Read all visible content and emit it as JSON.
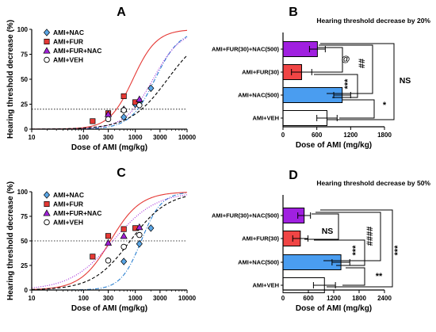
{
  "colors": {
    "nac": "#2a7fd0",
    "fur": "#e53935",
    "fur_nac": "#a020d8",
    "veh": "#000000",
    "bar_nac": "#4a9df0",
    "bar_fur": "#f04545",
    "bar_fur_nac": "#a020e0",
    "bar_veh": "#ffffff",
    "point_nac": "#5aa6e6"
  },
  "chart_data": [
    {
      "type": "scatter",
      "panel": "A",
      "xlabel": "Dose of AMI (mg/kg)",
      "ylabel": "Hearing threshold decrease (%)",
      "xscale": "log",
      "xlim": [
        10,
        10000
      ],
      "ylim": [
        0,
        100
      ],
      "xticks": [
        10,
        100,
        300,
        1000,
        3000,
        10000
      ],
      "xtick_labels": [
        "10",
        "100",
        "300",
        "1000",
        "3000",
        "10000"
      ],
      "yticks": [
        0,
        25,
        50,
        75,
        100
      ],
      "reference_line": 20,
      "legend_position": "top-left",
      "series": [
        {
          "name": "AMI+NAC",
          "key": "nac",
          "marker": "diamond",
          "line": "dash-dot",
          "points": [
            [
              600,
              12
            ],
            [
              1000,
              25
            ],
            [
              1200,
              28
            ],
            [
              2000,
              41
            ]
          ],
          "curve": {
            "ec50": 2400,
            "hill": 1.8
          }
        },
        {
          "name": "AMI+FUR",
          "key": "fur",
          "marker": "square",
          "line": "solid",
          "points": [
            [
              150,
              8
            ],
            [
              300,
              16
            ],
            [
              600,
              33
            ],
            [
              1000,
              27
            ]
          ],
          "curve": {
            "ec50": 900,
            "hill": 1.9
          }
        },
        {
          "name": "AMI+FUR+NAC",
          "key": "fur_nac",
          "marker": "triangle",
          "line": "dotted",
          "points": [
            [
              300,
              15
            ],
            [
              600,
              20
            ],
            [
              1200,
              30
            ]
          ],
          "curve": {
            "ec50": 2200,
            "hill": 1.6
          }
        },
        {
          "name": "AMI+VEH",
          "key": "veh",
          "marker": "circle",
          "line": "dashed",
          "points": [
            [
              300,
              10
            ],
            [
              600,
              19
            ],
            [
              1200,
              24
            ]
          ],
          "curve": {
            "ec50": 4200,
            "hill": 1.2
          }
        }
      ]
    },
    {
      "type": "bar",
      "panel": "B",
      "orientation": "horizontal",
      "title": "Hearing threshold decrease by 20%",
      "xlabel": "Dose of AMI (mg/kg)",
      "xlim": [
        0,
        1800
      ],
      "xticks": [
        0,
        600,
        1200,
        1800
      ],
      "categories": [
        "AMI+FUR(30)+NAC(500)",
        "AMI+FUR(30)",
        "AMI+NAC(500)",
        "AMI+VEH"
      ],
      "keys": [
        "fur_nac",
        "fur",
        "nac",
        "veh"
      ],
      "values": [
        610,
        330,
        1050,
        780
      ],
      "errors": [
        140,
        180,
        150,
        180
      ],
      "significance": [
        {
          "from": 0,
          "to": 1,
          "label": "@"
        },
        {
          "from": 0,
          "to": 2,
          "label": "##"
        },
        {
          "from": 1,
          "to": 2,
          "label": "***"
        },
        {
          "from": 0,
          "to": 3,
          "label": "NS"
        },
        {
          "from": 2,
          "to": 3,
          "label": "*"
        }
      ]
    },
    {
      "type": "scatter",
      "panel": "C",
      "xlabel": "Dose of AMI (mg/kg)",
      "ylabel": "Hearing threshold decrease (%)",
      "xscale": "log",
      "xlim": [
        10,
        10000
      ],
      "ylim": [
        0,
        100
      ],
      "xticks": [
        10,
        100,
        300,
        1000,
        3000,
        10000
      ],
      "xtick_labels": [
        "10",
        "100",
        "300",
        "1000",
        "3000",
        "10000"
      ],
      "yticks": [
        0,
        25,
        50,
        75,
        100
      ],
      "reference_line": 50,
      "legend_position": "top-left",
      "series": [
        {
          "name": "AMI+NAC",
          "key": "nac",
          "marker": "diamond",
          "line": "dash-dot",
          "points": [
            [
              600,
              29
            ],
            [
              1200,
              47
            ],
            [
              2000,
              63
            ]
          ],
          "curve": {
            "ec50": 1300,
            "hill": 2.2
          }
        },
        {
          "name": "AMI+FUR",
          "key": "fur",
          "marker": "square",
          "line": "solid",
          "points": [
            [
              150,
              34
            ],
            [
              300,
              55
            ],
            [
              600,
              62
            ],
            [
              1000,
              63
            ]
          ],
          "curve": {
            "ec50": 330,
            "hill": 1.5
          }
        },
        {
          "name": "AMI+FUR+NAC",
          "key": "fur_nac",
          "marker": "triangle",
          "line": "dotted",
          "points": [
            [
              300,
              48
            ],
            [
              600,
              55
            ],
            [
              1200,
              64
            ]
          ],
          "curve": {
            "ec50": 370,
            "hill": 1.05
          }
        },
        {
          "name": "AMI+VEH",
          "key": "veh",
          "marker": "circle",
          "line": "dashed",
          "points": [
            [
              300,
              30
            ],
            [
              600,
              44
            ],
            [
              1200,
              56
            ]
          ],
          "curve": {
            "ec50": 800,
            "hill": 1.2
          }
        }
      ]
    },
    {
      "type": "bar",
      "panel": "D",
      "orientation": "horizontal",
      "title": "Hearing threshold decrease by 50%",
      "xlabel": "Dose of AMI (mg/kg)",
      "xlim": [
        0,
        2400
      ],
      "xticks": [
        0,
        600,
        1200,
        1800,
        2400
      ],
      "categories": [
        "AMI+FUR(30)+NAC(500)",
        "AMI+FUR(30)",
        "AMI+NAC(500)",
        "AMI+VEH"
      ],
      "keys": [
        "fur_nac",
        "fur",
        "nac",
        "veh"
      ],
      "values": [
        500,
        410,
        1370,
        980
      ],
      "errors": [
        150,
        180,
        210,
        260
      ],
      "significance": [
        {
          "from": 0,
          "to": 1,
          "label": "NS"
        },
        {
          "from": 0,
          "to": 2,
          "label": "####"
        },
        {
          "from": 1,
          "to": 2,
          "label": "***"
        },
        {
          "from": 0,
          "to": 3,
          "label": "***"
        },
        {
          "from": 2,
          "to": 3,
          "label": "**"
        }
      ]
    }
  ]
}
